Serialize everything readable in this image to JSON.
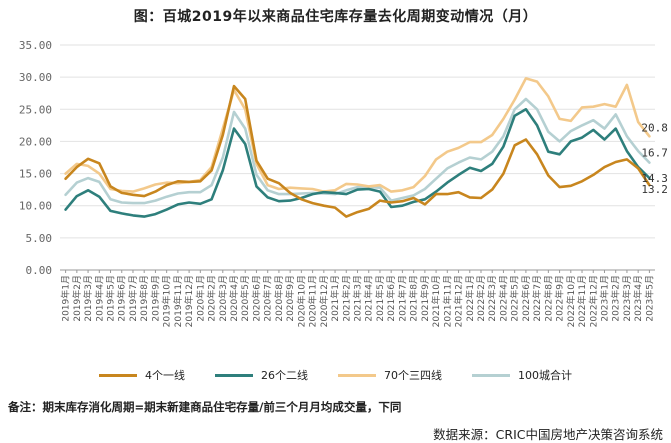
{
  "chart_data": {
    "type": "line",
    "title": "图：百城2019年以来商品住宅库存量去化周期变动情况（月）",
    "xlabel": "",
    "ylabel": "",
    "ylim": [
      0,
      35
    ],
    "yticks": [
      "0.00",
      "5.00",
      "10.00",
      "15.00",
      "20.00",
      "25.00",
      "30.00",
      "35.00"
    ],
    "grid": true,
    "legend_position": "bottom",
    "categories": [
      "2019年1月",
      "2019年2月",
      "2019年3月",
      "2019年4月",
      "2019年5月",
      "2019年6月",
      "2019年7月",
      "2019年8月",
      "2019年9月",
      "2019年10月",
      "2019年11月",
      "2019年12月",
      "2020年1月",
      "2020年2月",
      "2020年3月",
      "2020年4月",
      "2020年5月",
      "2020年6月",
      "2020年7月",
      "2020年8月",
      "2020年9月",
      "2020年10月",
      "2020年11月",
      "2020年12月",
      "2021年1月",
      "2021年2月",
      "2021年3月",
      "2021年4月",
      "2021年5月",
      "2021年6月",
      "2021年7月",
      "2021年8月",
      "2021年9月",
      "2021年10月",
      "2021年11月",
      "2021年12月",
      "2022年1月",
      "2022年2月",
      "2022年3月",
      "2022年4月",
      "2022年5月",
      "2022年6月",
      "2022年7月",
      "2022年8月",
      "2022年9月",
      "2022年10月",
      "2022年11月",
      "2022年12月",
      "2023年1月",
      "2023年2月",
      "2023年3月",
      "2023年4月",
      "2023年5月"
    ],
    "series": [
      {
        "name": "4个一线",
        "color": "#C8861E",
        "values": [
          14.2,
          16.0,
          17.3,
          16.6,
          13.0,
          12.0,
          11.7,
          11.5,
          12.2,
          13.2,
          13.8,
          13.7,
          13.8,
          15.5,
          21.0,
          28.6,
          26.6,
          17.0,
          14.2,
          13.5,
          12.0,
          11.0,
          10.4,
          10.0,
          9.7,
          8.3,
          9.0,
          9.5,
          10.8,
          10.5,
          10.7,
          11.2,
          10.2,
          11.8,
          11.8,
          12.1,
          11.3,
          11.2,
          12.5,
          15.0,
          19.4,
          20.3,
          18.0,
          14.7,
          12.9,
          13.1,
          13.8,
          14.8,
          16.0,
          16.8,
          17.2,
          15.8,
          13.2
        ]
      },
      {
        "name": "26个二线",
        "color": "#2E7F7C",
        "values": [
          9.4,
          11.5,
          12.4,
          11.4,
          9.2,
          8.8,
          8.5,
          8.3,
          8.7,
          9.4,
          10.2,
          10.5,
          10.3,
          11.0,
          15.5,
          22.0,
          19.6,
          13.0,
          11.3,
          10.7,
          10.8,
          11.2,
          11.8,
          12.1,
          12.0,
          11.8,
          12.5,
          12.6,
          12.2,
          9.8,
          10.0,
          10.6,
          11.0,
          12.2,
          13.6,
          14.8,
          15.9,
          15.4,
          16.5,
          19.2,
          24.0,
          25.0,
          22.5,
          18.4,
          18.0,
          20.0,
          20.6,
          21.8,
          20.3,
          22.0,
          18.5,
          16.0,
          14.3
        ]
      },
      {
        "name": "70个三四线",
        "color": "#F3C98B",
        "values": [
          15.0,
          16.5,
          16.2,
          15.0,
          12.6,
          12.3,
          12.2,
          12.7,
          13.3,
          13.6,
          13.5,
          13.7,
          14.0,
          16.0,
          22.0,
          28.0,
          25.0,
          16.5,
          13.2,
          12.6,
          12.8,
          12.7,
          12.6,
          12.2,
          12.4,
          13.4,
          13.3,
          13.0,
          13.2,
          12.2,
          12.4,
          12.9,
          14.6,
          17.2,
          18.4,
          19.0,
          19.9,
          19.9,
          21.0,
          23.5,
          26.5,
          29.8,
          29.3,
          27.0,
          23.5,
          23.2,
          25.3,
          25.4,
          25.8,
          25.4,
          28.8,
          23.0,
          20.8
        ]
      },
      {
        "name": "100城合计",
        "color": "#B5D0D2",
        "values": [
          11.7,
          13.6,
          14.3,
          13.7,
          11.0,
          10.5,
          10.4,
          10.4,
          10.8,
          11.4,
          11.9,
          12.1,
          12.1,
          13.2,
          17.5,
          24.6,
          22.0,
          14.8,
          12.4,
          11.8,
          11.8,
          11.9,
          12.0,
          11.9,
          11.8,
          12.4,
          12.9,
          12.9,
          12.8,
          10.8,
          11.2,
          11.6,
          12.6,
          14.2,
          15.8,
          16.7,
          17.5,
          17.2,
          18.4,
          20.8,
          25.0,
          26.6,
          25.0,
          21.5,
          20.0,
          21.6,
          22.5,
          23.3,
          22.0,
          24.2,
          20.8,
          18.5,
          16.7
        ]
      }
    ],
    "end_labels": [
      "20.8",
      "16.7",
      "14.3",
      "13.2"
    ]
  },
  "note": "备注：期末库存消化周期=期末新建商品住宅存量/前三个月月均成交量，下同",
  "source": "数据来源：CRIC中国房地产决策咨询系统"
}
